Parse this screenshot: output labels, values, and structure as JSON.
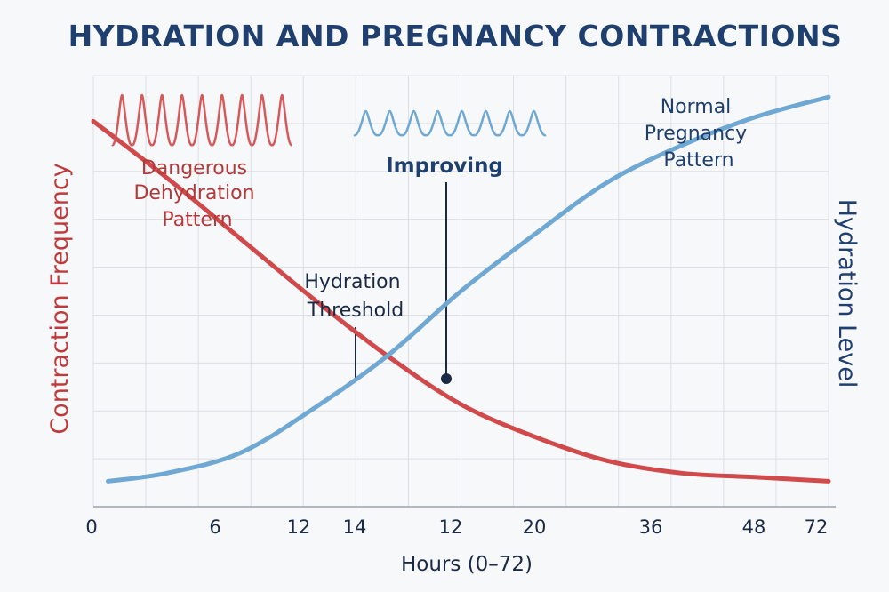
{
  "chart_data": {
    "type": "line",
    "title": "HYDRATION AND PREGNANCY CONTRACTIONS",
    "xlabel": "Hours (0–72)",
    "ylabel_left": "Contraction Frequency",
    "ylabel_right": "Hydration Level",
    "x_tick_labels": [
      "0",
      "6",
      "12",
      "14",
      "12",
      "20",
      "36",
      "48",
      "72"
    ],
    "grid": true,
    "series": [
      {
        "key": "contraction",
        "color": "#d0494b",
        "axis": "left",
        "points": [
          [
            0,
            0.92
          ],
          [
            0.1,
            0.78
          ],
          [
            0.2,
            0.63
          ],
          [
            0.3,
            0.48
          ],
          [
            0.4,
            0.34
          ],
          [
            0.5,
            0.22
          ],
          [
            0.6,
            0.14
          ],
          [
            0.7,
            0.08
          ],
          [
            0.8,
            0.05
          ],
          [
            0.9,
            0.04
          ],
          [
            1.0,
            0.03
          ]
        ]
      },
      {
        "key": "hydration",
        "color": "#6fa8d3",
        "axis": "right",
        "points": [
          [
            0.02,
            0.03
          ],
          [
            0.1,
            0.05
          ],
          [
            0.2,
            0.1
          ],
          [
            0.3,
            0.21
          ],
          [
            0.4,
            0.34
          ],
          [
            0.5,
            0.5
          ],
          [
            0.6,
            0.64
          ],
          [
            0.7,
            0.77
          ],
          [
            0.8,
            0.86
          ],
          [
            0.9,
            0.93
          ],
          [
            1.0,
            0.98
          ]
        ]
      }
    ],
    "annotations": {
      "dangerous": [
        "Dangerous",
        "Dehydration",
        "Pattern"
      ],
      "improving": "Improving",
      "threshold": [
        "Hydration",
        "Threshold"
      ],
      "normal": [
        "Normal",
        "Pregnancy",
        "Pattern"
      ]
    },
    "colors": {
      "title": "#1f3f6e",
      "red": "#d0494b",
      "blue": "#6fa8d3",
      "navy": "#1f3f6e",
      "grid": "#dcdfe4"
    }
  }
}
